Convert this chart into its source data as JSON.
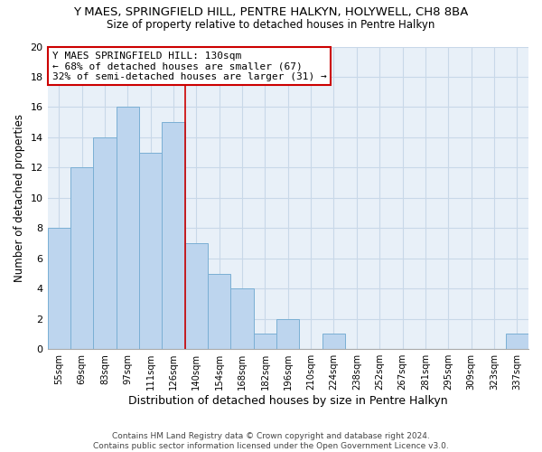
{
  "title": "Y MAES, SPRINGFIELD HILL, PENTRE HALKYN, HOLYWELL, CH8 8BA",
  "subtitle": "Size of property relative to detached houses in Pentre Halkyn",
  "xlabel": "Distribution of detached houses by size in Pentre Halkyn",
  "ylabel": "Number of detached properties",
  "bar_labels": [
    "55sqm",
    "69sqm",
    "83sqm",
    "97sqm",
    "111sqm",
    "126sqm",
    "140sqm",
    "154sqm",
    "168sqm",
    "182sqm",
    "196sqm",
    "210sqm",
    "224sqm",
    "238sqm",
    "252sqm",
    "267sqm",
    "281sqm",
    "295sqm",
    "309sqm",
    "323sqm",
    "337sqm"
  ],
  "bar_values": [
    8,
    12,
    14,
    16,
    13,
    15,
    7,
    5,
    4,
    1,
    2,
    0,
    1,
    0,
    0,
    0,
    0,
    0,
    0,
    0,
    1
  ],
  "bar_color": "#bdd5ee",
  "bar_edge_color": "#7aafd4",
  "ref_line_index": 6,
  "ylim": [
    0,
    20
  ],
  "yticks": [
    0,
    2,
    4,
    6,
    8,
    10,
    12,
    14,
    16,
    18,
    20
  ],
  "annotation_title": "Y MAES SPRINGFIELD HILL: 130sqm",
  "annotation_line1": "← 68% of detached houses are smaller (67)",
  "annotation_line2": "32% of semi-detached houses are larger (31) →",
  "annotation_box_color": "#ffffff",
  "annotation_box_edge_color": "#cc0000",
  "footer_line1": "Contains HM Land Registry data © Crown copyright and database right 2024.",
  "footer_line2": "Contains public sector information licensed under the Open Government Licence v3.0.",
  "grid_color": "#c8d8e8",
  "background_color": "#e8f0f8"
}
